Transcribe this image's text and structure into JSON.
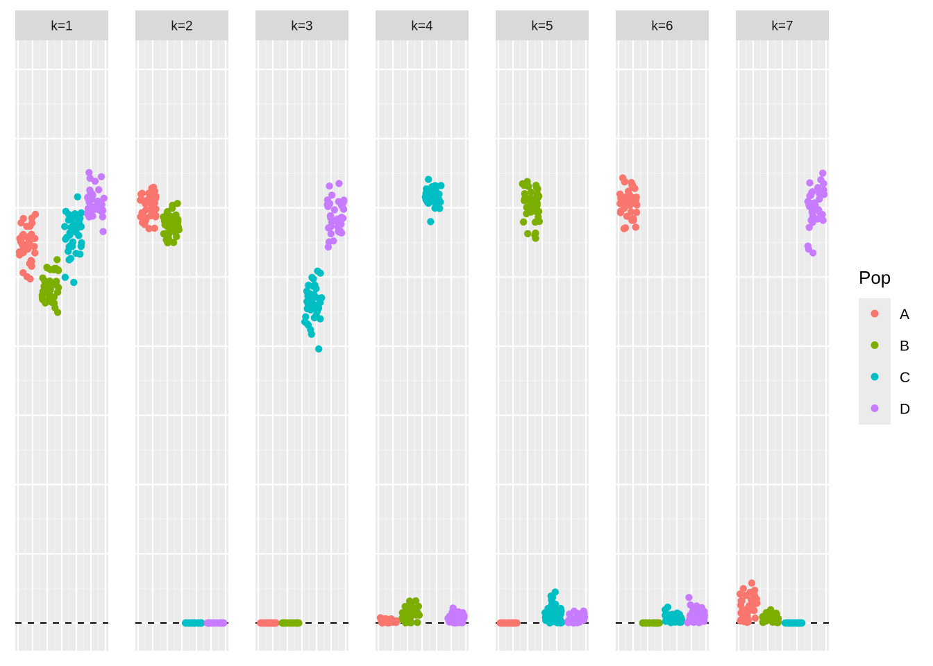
{
  "chart_data": {
    "type": "scatter",
    "facets": [
      "k=1",
      "k=2",
      "k=3",
      "k=4",
      "k=5",
      "k=6",
      "k=7"
    ],
    "ylim": [
      0,
      1.04
    ],
    "reference_line": {
      "y": 0,
      "style": "dashed"
    },
    "grid": true,
    "legend": {
      "title": "Pop",
      "placement": "right",
      "entries": [
        {
          "label": "A",
          "color": "#F8766D"
        },
        {
          "label": "B",
          "color": "#7CAE00"
        },
        {
          "label": "C",
          "color": "#00BFC4"
        },
        {
          "label": "D",
          "color": "#C77CFF"
        }
      ]
    },
    "clusters": [
      {
        "facet": 0,
        "pop": 0,
        "y_center": 0.69,
        "y_spread": 0.03,
        "n": 40
      },
      {
        "facet": 0,
        "pop": 1,
        "y_center": 0.61,
        "y_spread": 0.025,
        "n": 40
      },
      {
        "facet": 0,
        "pop": 2,
        "y_center": 0.7,
        "y_spread": 0.03,
        "n": 40
      },
      {
        "facet": 0,
        "pop": 3,
        "y_center": 0.755,
        "y_spread": 0.025,
        "n": 40
      },
      {
        "facet": 1,
        "pop": 0,
        "y_center": 0.75,
        "y_spread": 0.02,
        "n": 40
      },
      {
        "facet": 1,
        "pop": 1,
        "y_center": 0.725,
        "y_spread": 0.017,
        "n": 40
      },
      {
        "facet": 1,
        "pop": 2,
        "y_center": 0.0,
        "y_spread": 0.0,
        "n": 40
      },
      {
        "facet": 1,
        "pop": 3,
        "y_center": 0.0,
        "y_spread": 0.0,
        "n": 40
      },
      {
        "facet": 2,
        "pop": 0,
        "y_center": 0.0,
        "y_spread": 0.0,
        "n": 40
      },
      {
        "facet": 2,
        "pop": 1,
        "y_center": 0.0,
        "y_spread": 0.0,
        "n": 40
      },
      {
        "facet": 2,
        "pop": 2,
        "y_center": 0.57,
        "y_spread": 0.025,
        "n": 40
      },
      {
        "facet": 2,
        "pop": 3,
        "y_center": 0.74,
        "y_spread": 0.03,
        "n": 40
      },
      {
        "facet": 3,
        "pop": 0,
        "y_center": 0.003,
        "y_spread": 0.004,
        "n": 40
      },
      {
        "facet": 3,
        "pop": 1,
        "y_center": 0.015,
        "y_spread": 0.01,
        "n": 40
      },
      {
        "facet": 3,
        "pop": 2,
        "y_center": 0.77,
        "y_spread": 0.012,
        "n": 40
      },
      {
        "facet": 3,
        "pop": 3,
        "y_center": 0.003,
        "y_spread": 0.01,
        "n": 40
      },
      {
        "facet": 4,
        "pop": 0,
        "y_center": 0.0,
        "y_spread": 0.0,
        "n": 40
      },
      {
        "facet": 4,
        "pop": 1,
        "y_center": 0.76,
        "y_spread": 0.025,
        "n": 40
      },
      {
        "facet": 4,
        "pop": 2,
        "y_center": 0.015,
        "y_spread": 0.015,
        "n": 40
      },
      {
        "facet": 4,
        "pop": 3,
        "y_center": 0.008,
        "y_spread": 0.008,
        "n": 40
      },
      {
        "facet": 5,
        "pop": 0,
        "y_center": 0.765,
        "y_spread": 0.02,
        "n": 40
      },
      {
        "facet": 5,
        "pop": 1,
        "y_center": 0.0,
        "y_spread": 0.0,
        "n": 40
      },
      {
        "facet": 5,
        "pop": 2,
        "y_center": 0.008,
        "y_spread": 0.008,
        "n": 40
      },
      {
        "facet": 5,
        "pop": 3,
        "y_center": 0.012,
        "y_spread": 0.01,
        "n": 40
      },
      {
        "facet": 6,
        "pop": 0,
        "y_center": 0.025,
        "y_spread": 0.018,
        "n": 40
      },
      {
        "facet": 6,
        "pop": 1,
        "y_center": 0.005,
        "y_spread": 0.01,
        "n": 40
      },
      {
        "facet": 6,
        "pop": 2,
        "y_center": 0.0,
        "y_spread": 0.0,
        "n": 40
      },
      {
        "facet": 6,
        "pop": 3,
        "y_center": 0.745,
        "y_spread": 0.03,
        "n": 40
      }
    ]
  }
}
